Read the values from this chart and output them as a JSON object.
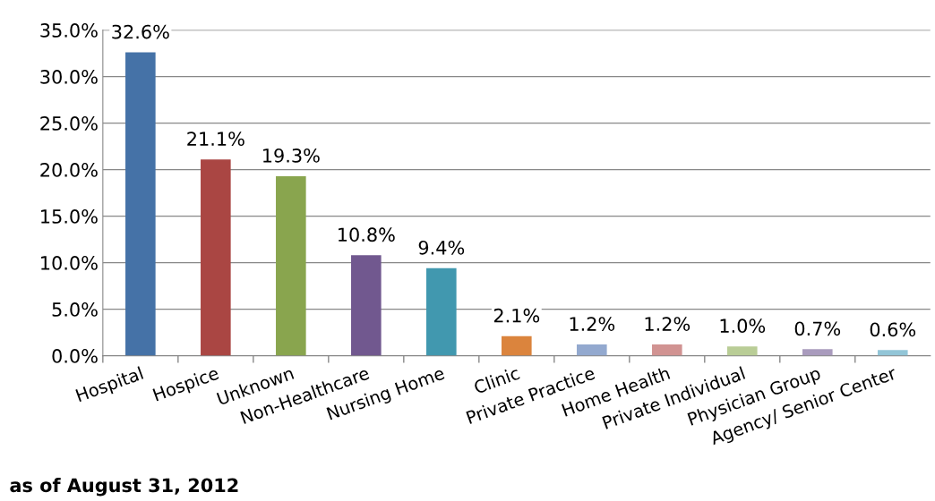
{
  "chart_data": {
    "type": "bar",
    "categories": [
      "Hospital",
      "Hospice",
      "Unknown",
      "Non-Healthcare",
      "Nursing Home",
      "Clinic",
      "Private Practice",
      "Home Health",
      "Private Individual",
      "Physician Group",
      "Agency/ Senior Center"
    ],
    "values": [
      32.6,
      21.1,
      19.3,
      10.8,
      9.4,
      2.1,
      1.2,
      1.2,
      1.0,
      0.7,
      0.6
    ],
    "colors": [
      "#4572a7",
      "#aa4643",
      "#89a54e",
      "#71588f",
      "#4198af",
      "#db843d",
      "#93a9cf",
      "#d19392",
      "#b9cd96",
      "#a99bbd",
      "#92c5d7"
    ],
    "value_labels": [
      "32.6%",
      "21.1%",
      "19.3%",
      "10.8%",
      "9.4%",
      "2.1%",
      "1.2%",
      "1.2%",
      "1.0%",
      "0.7%",
      "0.6%"
    ],
    "ylim": [
      0,
      35
    ],
    "yticks": [
      {
        "value": 0,
        "label": "0.0%"
      },
      {
        "value": 5,
        "label": "5.0%"
      },
      {
        "value": 10,
        "label": "10.0%"
      },
      {
        "value": 15,
        "label": "15.0%"
      },
      {
        "value": 20,
        "label": "20.0%"
      },
      {
        "value": 25,
        "label": "25.0%"
      },
      {
        "value": 30,
        "label": "30.0%"
      },
      {
        "value": 35,
        "label": "35.0%"
      }
    ],
    "grid": "y",
    "annotations": [
      "as of August 31, 2012"
    ]
  }
}
